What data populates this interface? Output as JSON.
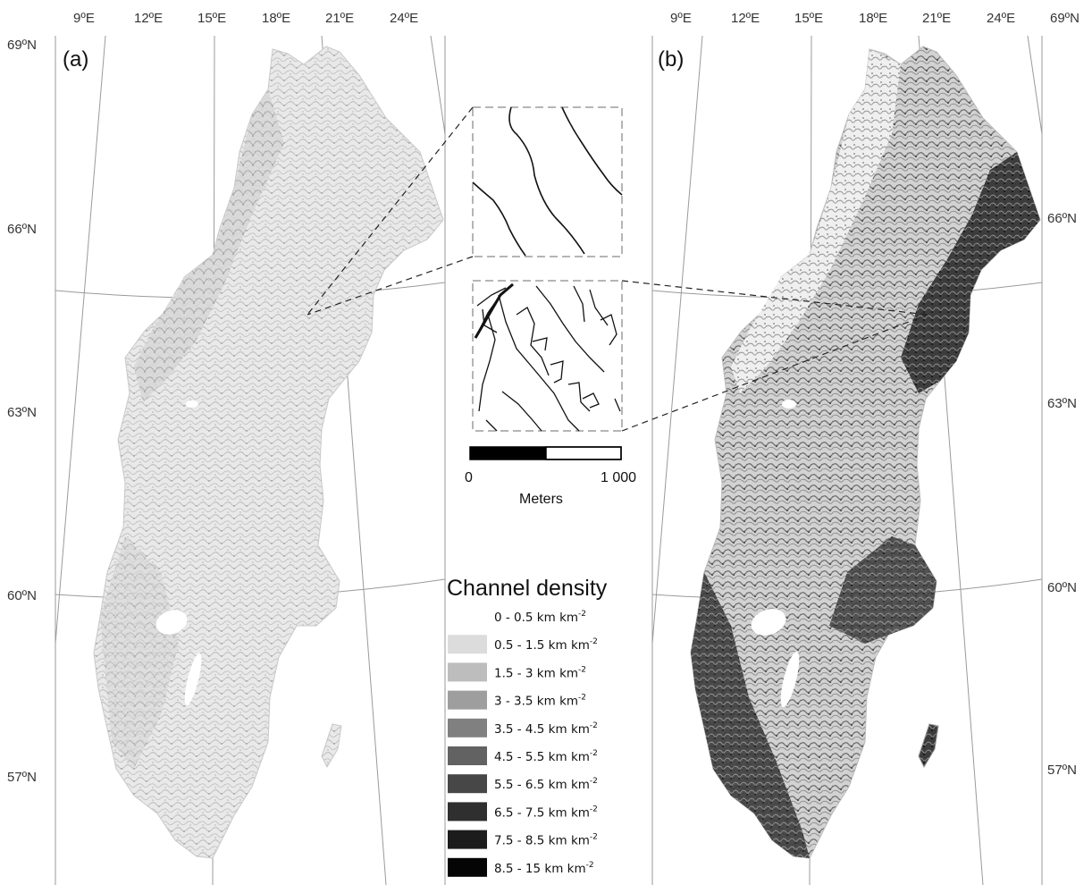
{
  "maps": [
    {
      "id": "a",
      "panel_label": "(a)",
      "lon_labels": [
        "9ºE",
        "12ºE",
        "15ºE",
        "18ºE",
        "21ºE",
        "24ºE"
      ],
      "lat_labels": [
        "69ºN",
        "66ºN",
        "63ºN",
        "60ºN",
        "57ºN"
      ],
      "shading": "light"
    },
    {
      "id": "b",
      "panel_label": "(b)",
      "lon_labels": [
        "9ºE",
        "12ºE",
        "15ºE",
        "18ºE",
        "21ºE",
        "24ºE",
        "69ºN"
      ],
      "lat_labels": [
        "66ºN",
        "63ºN",
        "60ºN",
        "57ºN"
      ],
      "shading": "dark"
    }
  ],
  "scale_bar": {
    "start_label": "0",
    "end_label": "1 000",
    "unit_label": "Meters"
  },
  "legend": {
    "title": "Channel density",
    "items": [
      {
        "range": "0 - 0.5 km km",
        "sup": "-2",
        "color": "#ffffff"
      },
      {
        "range": "0.5 - 1.5 km km",
        "sup": "-2",
        "color": "#dcdcdc"
      },
      {
        "range": "1.5 - 3 km km",
        "sup": "-2",
        "color": "#bdbdbd"
      },
      {
        "range": "3 - 3.5 km km",
        "sup": "-2",
        "color": "#9e9e9e"
      },
      {
        "range": "3.5 - 4.5  km km",
        "sup": "-2",
        "color": "#808080"
      },
      {
        "range": "4.5 - 5.5 km km",
        "sup": "-2",
        "color": "#626262"
      },
      {
        "range": "5.5 - 6.5 km km",
        "sup": "-2",
        "color": "#474747"
      },
      {
        "range": "6.5 - 7.5 km km",
        "sup": "-2",
        "color": "#2f2f2f"
      },
      {
        "range": "7.5 - 8.5 km km",
        "sup": "-2",
        "color": "#1c1c1c"
      },
      {
        "range": "8.5 - 15 km km",
        "sup": "-2",
        "color": "#050505"
      }
    ]
  }
}
